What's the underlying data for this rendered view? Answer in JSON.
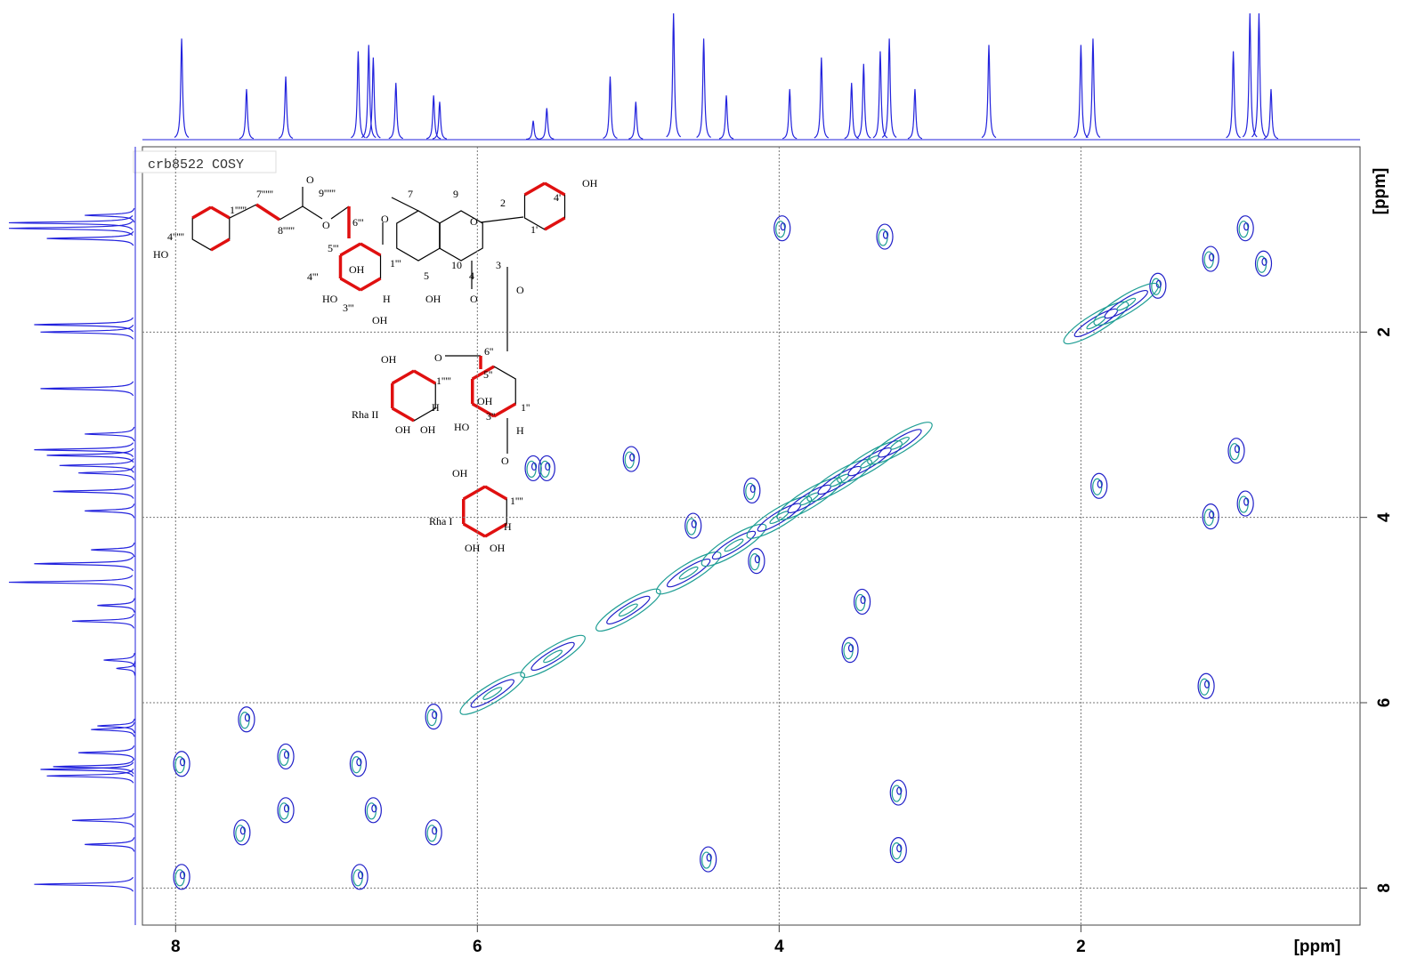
{
  "chart_data": {
    "type": "scatter",
    "title": "crb8522 COSY",
    "xlabel": "[ppm]",
    "ylabel": "[ppm]",
    "xlim": [
      8.22,
      0.15
    ],
    "ylim": [
      0.0,
      8.4
    ],
    "xticks": [
      8,
      6,
      4,
      2
    ],
    "yticks": [
      2,
      4,
      6,
      8
    ],
    "grid": true,
    "colors": [
      "#1f1fc8",
      "#1f9e94"
    ],
    "projection_color": "#2222dd",
    "cross_peaks": {
      "x": [
        7.96,
        7.96,
        7.53,
        7.56,
        7.27,
        7.27,
        6.79,
        6.78,
        6.69,
        6.29,
        6.29,
        3.98,
        3.3,
        0.91,
        1.14,
        0.79,
        0.97,
        0.91,
        1.14,
        1.88,
        1.17,
        1.49,
        3.21,
        3.21,
        3.45,
        3.53,
        4.47,
        5.63,
        5.54,
        4.98,
        4.18,
        4.15,
        4.57
      ],
      "values": [
        6.66,
        7.88,
        6.18,
        7.4,
        6.58,
        7.16,
        6.66,
        7.88,
        7.16,
        6.15,
        7.4,
        0.88,
        0.97,
        0.88,
        1.21,
        1.26,
        3.28,
        3.85,
        3.99,
        3.66,
        5.82,
        1.5,
        6.97,
        7.59,
        4.91,
        5.43,
        7.69,
        3.47,
        3.47,
        3.37,
        3.71,
        4.47,
        4.09
      ]
    },
    "diagonal_peaks": {
      "x": [
        5.9,
        5.5,
        5.0,
        4.6,
        4.3,
        4.0,
        3.8,
        3.6,
        3.4,
        3.2,
        1.9,
        1.7
      ],
      "values": [
        5.9,
        5.5,
        5.0,
        4.6,
        4.3,
        4.0,
        3.8,
        3.6,
        3.4,
        3.2,
        1.9,
        1.7
      ]
    },
    "projection": {
      "x": [
        7.96,
        7.53,
        7.27,
        6.79,
        6.72,
        6.69,
        6.54,
        6.29,
        6.25,
        5.63,
        5.54,
        5.12,
        4.95,
        4.7,
        4.5,
        4.35,
        3.93,
        3.72,
        3.52,
        3.44,
        3.33,
        3.27,
        3.1,
        2.61,
        2.0,
        1.92,
        0.99,
        0.88,
        0.82,
        0.74
      ],
      "values": [
        80,
        40,
        50,
        70,
        75,
        65,
        45,
        35,
        30,
        15,
        25,
        50,
        30,
        100,
        80,
        35,
        40,
        65,
        45,
        60,
        70,
        80,
        40,
        75,
        75,
        80,
        70,
        100,
        100,
        40
      ]
    }
  },
  "structure": {
    "labels": [
      "OH",
      "HO",
      "O",
      "H",
      "Rha II",
      "Rha I",
      "7",
      "9",
      "2",
      "1'",
      "4'",
      "5",
      "10",
      "4",
      "3",
      "1'''",
      "1''",
      "1''''",
      "1'''''",
      "6''",
      "6'''",
      "5'''",
      "5''",
      "3''",
      "3'''",
      "4'''",
      "7''''''",
      "8''''''",
      "9''''''",
      "1''''''",
      "4''''''"
    ]
  }
}
